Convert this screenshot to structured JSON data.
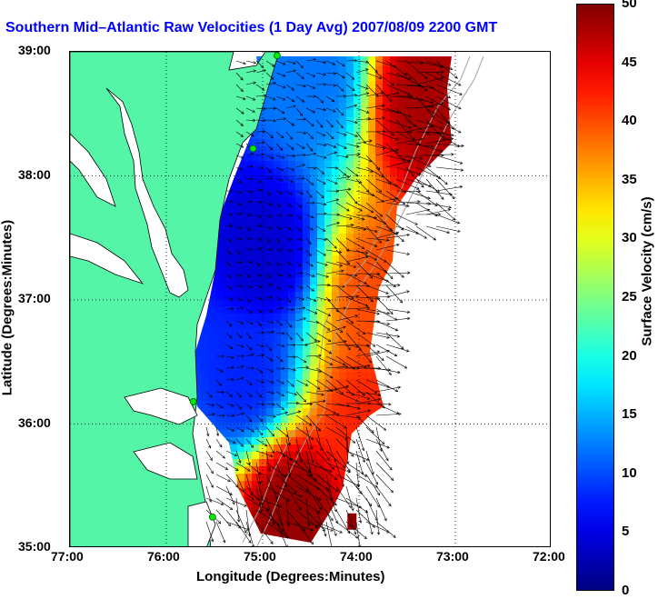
{
  "title": "Southern Mid–Atlantic Raw Velocities (1 Day Avg) 2007/08/09 2200 GMT",
  "axes": {
    "xlabel": "Longitude (Degrees:Minutes)",
    "ylabel": "Latitude (Degrees:Minutes)",
    "x_ticks": [
      "77:00",
      "76:00",
      "75:00",
      "74:00",
      "73:00",
      "72:00"
    ],
    "y_ticks": [
      "39:00",
      "38:00",
      "37:00",
      "36:00",
      "35:00"
    ],
    "x_range_deg": [
      -77,
      -72
    ],
    "y_range_deg": [
      35,
      39
    ]
  },
  "colorbar": {
    "title": "Surface Velocity (cm/s)",
    "ticks": [
      "50",
      "45",
      "40",
      "35",
      "30",
      "25",
      "20",
      "15",
      "10",
      "5",
      "0"
    ],
    "range": [
      0,
      50
    ],
    "colormap": "jet"
  },
  "colors": {
    "land": "#55f5a8",
    "coastline": "#000000",
    "title": "#0000ff",
    "station": "#00ee00",
    "bathymetry": "#a0a0a0"
  },
  "legend": {
    "arrows": "velocity vectors",
    "stations": "HF radar sites"
  },
  "chart_data": {
    "type": "heatmap",
    "title": "Southern Mid–Atlantic Raw Velocities (1 Day Avg) 2007/08/09 2200 GMT",
    "xlabel": "Longitude (Degrees:Minutes)",
    "ylabel": "Latitude (Degrees:Minutes)",
    "xlim": [
      -77,
      -72
    ],
    "ylim": [
      35,
      39
    ],
    "value_label": "Surface Velocity (cm/s)",
    "value_range": [
      0,
      50
    ],
    "regions": [
      {
        "name": "central low-speed core",
        "lon": -75.0,
        "lat": 37.4,
        "speed": 4
      },
      {
        "name": "southern shelf",
        "lon": -75.2,
        "lat": 36.4,
        "speed": 8
      },
      {
        "name": "northeast offshore jet",
        "lon": -73.3,
        "lat": 38.6,
        "speed": 48
      },
      {
        "name": "east offshore 37N",
        "lon": -73.8,
        "lat": 37.0,
        "speed": 40
      },
      {
        "name": "cape hatteras jet",
        "lon": -74.7,
        "lat": 35.3,
        "speed": 49
      },
      {
        "name": "east 36N offshore",
        "lon": -73.9,
        "lat": 36.0,
        "speed": 42
      },
      {
        "name": "northern nearshore",
        "lon": -74.5,
        "lat": 38.8,
        "speed": 12
      }
    ],
    "stations": [
      {
        "lon": -74.85,
        "lat": 38.97
      },
      {
        "lon": -75.1,
        "lat": 38.22
      },
      {
        "lon": -75.72,
        "lat": 36.18
      },
      {
        "lon": -75.52,
        "lat": 35.25
      }
    ]
  }
}
